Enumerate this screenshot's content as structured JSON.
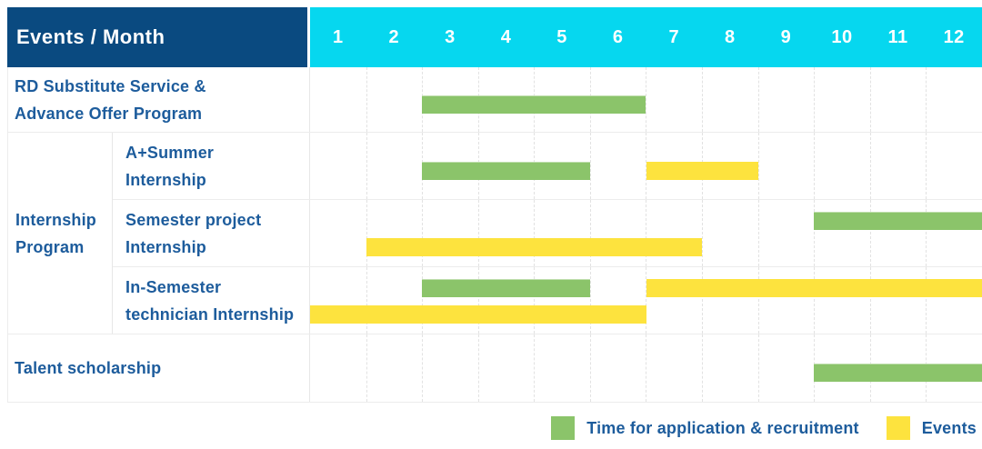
{
  "header": {
    "title": "Events / Month",
    "months": [
      "1",
      "2",
      "3",
      "4",
      "5",
      "6",
      "7",
      "8",
      "9",
      "10",
      "11",
      "12"
    ]
  },
  "colors": {
    "recruitment": "#8bc46a",
    "events": "#fde33e",
    "header_bg": "#0a4a80",
    "months_bg": "#06d7ef",
    "label_text": "#1d5c9c"
  },
  "sections": [
    {
      "type": "row",
      "label_lines": [
        "RD Substitute Service &",
        "Advance Offer Program"
      ],
      "bars": [
        {
          "kind": "recruitment",
          "start_month": 3,
          "end_month": 6,
          "track": "mid"
        }
      ]
    },
    {
      "type": "group",
      "label_lines": [
        "Internship",
        "Program"
      ],
      "rows": [
        {
          "label_lines": [
            "A+Summer",
            "Internship"
          ],
          "bars": [
            {
              "kind": "recruitment",
              "start_month": 3,
              "end_month": 5,
              "track": "mid"
            },
            {
              "kind": "events",
              "start_month": 7,
              "end_month": 8,
              "track": "mid"
            }
          ]
        },
        {
          "label_lines": [
            "Semester project",
            "Internship"
          ],
          "bars": [
            {
              "kind": "recruitment",
              "start_month": 10,
              "end_month": 12,
              "track": "top"
            },
            {
              "kind": "events",
              "start_month": 2,
              "end_month": 7,
              "track": "bottom"
            }
          ]
        },
        {
          "label_lines": [
            "In-Semester",
            "technician Internship"
          ],
          "bars": [
            {
              "kind": "recruitment",
              "start_month": 3,
              "end_month": 5,
              "track": "top"
            },
            {
              "kind": "events",
              "start_month": 7,
              "end_month": 12,
              "track": "top"
            },
            {
              "kind": "events",
              "start_month": 1,
              "end_month": 6,
              "track": "bottom"
            }
          ]
        }
      ]
    },
    {
      "type": "row",
      "label_lines": [
        "Talent scholarship"
      ],
      "bars": [
        {
          "kind": "recruitment",
          "start_month": 10,
          "end_month": 12,
          "track": "mid"
        }
      ]
    }
  ],
  "legend": [
    {
      "kind": "recruitment",
      "label": "Time for application & recruitment"
    },
    {
      "kind": "events",
      "label": "Events"
    }
  ],
  "chart_data": {
    "type": "gantt",
    "title": "Events / Month",
    "x_unit": "month",
    "x_range": [
      1,
      12
    ],
    "x_ticks": [
      1,
      2,
      3,
      4,
      5,
      6,
      7,
      8,
      9,
      10,
      11,
      12
    ],
    "legend": [
      "Time for application & recruitment",
      "Events"
    ],
    "legend_position": "bottom-right",
    "rows": [
      {
        "name": "RD Substitute Service & Advance Offer Program",
        "group": null,
        "segments": [
          {
            "series": "Time for application & recruitment",
            "start_month": 3,
            "end_month": 6
          }
        ]
      },
      {
        "name": "A+Summer Internship",
        "group": "Internship Program",
        "segments": [
          {
            "series": "Time for application & recruitment",
            "start_month": 3,
            "end_month": 5
          },
          {
            "series": "Events",
            "start_month": 7,
            "end_month": 8
          }
        ]
      },
      {
        "name": "Semester project Internship",
        "group": "Internship Program",
        "segments": [
          {
            "series": "Time for application & recruitment",
            "start_month": 10,
            "end_month": 12
          },
          {
            "series": "Events",
            "start_month": 2,
            "end_month": 7
          }
        ]
      },
      {
        "name": "In-Semester technician Internship",
        "group": "Internship Program",
        "segments": [
          {
            "series": "Time for application & recruitment",
            "start_month": 3,
            "end_month": 5
          },
          {
            "series": "Events",
            "start_month": 7,
            "end_month": 12
          },
          {
            "series": "Events",
            "start_month": 1,
            "end_month": 6
          }
        ]
      },
      {
        "name": "Talent scholarship",
        "group": null,
        "segments": [
          {
            "series": "Time for application & recruitment",
            "start_month": 10,
            "end_month": 12
          }
        ]
      }
    ]
  }
}
